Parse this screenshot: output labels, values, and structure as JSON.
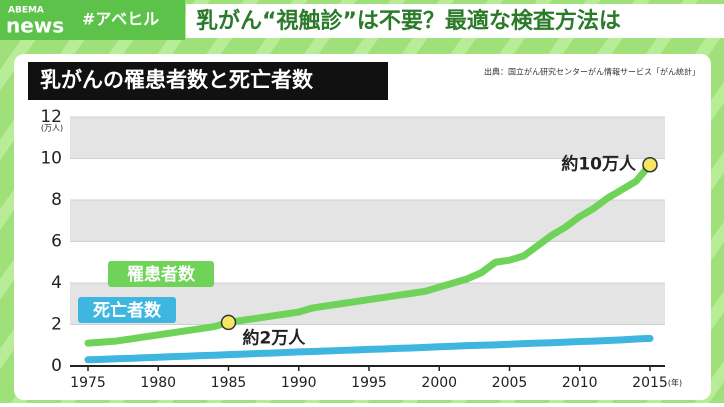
{
  "header": {
    "logo_top": "ABEMA",
    "logo": "news",
    "hashtag": "#アベヒル",
    "headline": "乳がん“視触診”は不要？最適な検査方法は"
  },
  "chart_data": {
    "type": "line",
    "title": "乳がんの罹患者数と死亡者数",
    "source": "出典：国立がん研究センターがん情報サービス「がん統計」",
    "y_unit": "(万人)",
    "x_unit": "(年)",
    "x": [
      1975,
      1976,
      1977,
      1978,
      1979,
      1980,
      1981,
      1982,
      1983,
      1984,
      1985,
      1986,
      1987,
      1988,
      1989,
      1990,
      1991,
      1992,
      1993,
      1994,
      1995,
      1996,
      1997,
      1998,
      1999,
      2000,
      2001,
      2002,
      2003,
      2004,
      2005,
      2006,
      2007,
      2008,
      2009,
      2010,
      2011,
      2012,
      2013,
      2014,
      2015
    ],
    "series": [
      {
        "name": "罹患者数",
        "color": "#6fd35a",
        "values": [
          1.1,
          1.15,
          1.2,
          1.3,
          1.4,
          1.5,
          1.6,
          1.7,
          1.8,
          1.9,
          2.1,
          2.2,
          2.3,
          2.4,
          2.5,
          2.6,
          2.8,
          2.9,
          3.0,
          3.1,
          3.2,
          3.3,
          3.4,
          3.5,
          3.6,
          3.8,
          4.0,
          4.2,
          4.5,
          5.0,
          5.1,
          5.3,
          5.8,
          6.3,
          6.7,
          7.2,
          7.6,
          8.1,
          8.5,
          8.9,
          9.7
        ]
      },
      {
        "name": "死亡者数",
        "color": "#3fb6e0",
        "values": [
          0.3,
          0.32,
          0.35,
          0.37,
          0.4,
          0.42,
          0.45,
          0.47,
          0.5,
          0.52,
          0.55,
          0.57,
          0.6,
          0.62,
          0.65,
          0.68,
          0.7,
          0.72,
          0.75,
          0.77,
          0.8,
          0.82,
          0.85,
          0.87,
          0.9,
          0.93,
          0.95,
          0.98,
          1.0,
          1.02,
          1.05,
          1.08,
          1.1,
          1.12,
          1.15,
          1.18,
          1.2,
          1.23,
          1.26,
          1.3,
          1.33
        ]
      }
    ],
    "annotations": [
      {
        "text": "約2万人",
        "x": 1985
      },
      {
        "text": "約10万人",
        "x": 2015
      }
    ],
    "xlim": [
      1975,
      2015
    ],
    "xticks": [
      1975,
      1980,
      1985,
      1990,
      1995,
      2000,
      2005,
      2010,
      2015
    ],
    "ylim": [
      0,
      12
    ],
    "yticks": [
      0,
      2,
      4,
      6,
      8,
      10,
      12
    ],
    "grid": true
  }
}
